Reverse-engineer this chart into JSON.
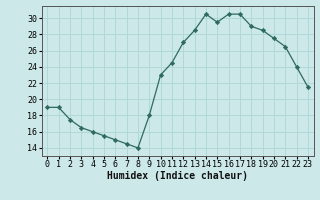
{
  "x": [
    0,
    1,
    2,
    3,
    4,
    5,
    6,
    7,
    8,
    9,
    10,
    11,
    12,
    13,
    14,
    15,
    16,
    17,
    18,
    19,
    20,
    21,
    22,
    23
  ],
  "y": [
    19,
    19,
    17.5,
    16.5,
    16,
    15.5,
    15,
    14.5,
    14,
    18,
    23,
    24.5,
    27,
    28.5,
    30.5,
    29.5,
    30.5,
    30.5,
    29,
    28.5,
    27.5,
    26.5,
    24,
    21.5
  ],
  "xlabel": "Humidex (Indice chaleur)",
  "xlim": [
    -0.5,
    23.5
  ],
  "ylim": [
    13,
    31.5
  ],
  "yticks": [
    14,
    16,
    18,
    20,
    22,
    24,
    26,
    28,
    30
  ],
  "xtick_labels": [
    "0",
    "1",
    "2",
    "3",
    "4",
    "5",
    "6",
    "7",
    "8",
    "9",
    "10",
    "11",
    "12",
    "13",
    "14",
    "15",
    "16",
    "17",
    "18",
    "19",
    "20",
    "21",
    "22",
    "23"
  ],
  "line_color": "#2e6b5e",
  "marker": "D",
  "marker_size": 2.2,
  "bg_color": "#cce8e8",
  "grid_color": "#b0d8d8",
  "fig_bg": "#cce8e8",
  "tick_fontsize": 6.0,
  "xlabel_fontsize": 7.0
}
